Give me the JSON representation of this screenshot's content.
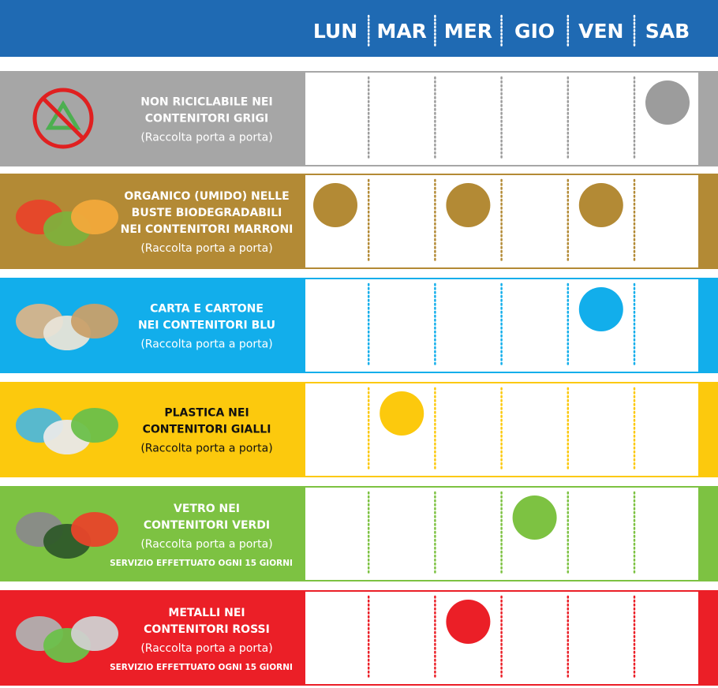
{
  "header": {
    "days": [
      "LUN",
      "MAR",
      "MER",
      "GIO",
      "VEN",
      "SAB"
    ],
    "color": "#1f6ab3"
  },
  "rows": [
    {
      "title": [
        "NON RICICLABILE NEI",
        "CONTENITORI GRIGI"
      ],
      "subtitle": "(Raccolta porta a porta)",
      "collection_days": [
        5
      ],
      "color": "#a6a6a6",
      "dot_color": "#9c9c9c",
      "text_color": "#ffffff"
    },
    {
      "title": [
        "ORGANICO (UMIDO) NELLE",
        "BUSTE BIODEGRADABILI",
        "NEI CONTENITORI MARRONI"
      ],
      "subtitle": "(Raccolta porta a porta)",
      "collection_days": [
        0,
        2,
        4
      ],
      "color": "#b38a35",
      "dot_color": "#b38a35",
      "text_color": "#ffffff"
    },
    {
      "title": [
        "CARTA E CARTONE",
        "NEI CONTENITORI BLU"
      ],
      "subtitle": "(Raccolta porta a porta)",
      "collection_days": [
        4
      ],
      "color": "#12aeeb",
      "dot_color": "#12aeeb",
      "text_color": "#ffffff"
    },
    {
      "title": [
        "PLASTICA NEI",
        "CONTENITORI GIALLI"
      ],
      "subtitle": "(Raccolta porta a porta)",
      "collection_days": [
        1
      ],
      "color": "#fcc90d",
      "dot_color": "#fcc90d",
      "text_color": "#111111"
    },
    {
      "title": [
        "VETRO NEI",
        "CONTENITORI VERDI"
      ],
      "subtitle": "(Raccolta porta a porta)",
      "note": "SERVIZIO EFFETTUATO OGNI 15 GIORNI",
      "collection_days": [
        3
      ],
      "color": "#7dc242",
      "dot_color": "#7dc242",
      "text_color": "#ffffff"
    },
    {
      "title": [
        "METALLI NEI",
        "CONTENITORI ROSSI"
      ],
      "subtitle": "(Raccolta porta a porta)",
      "note": "SERVIZIO EFFETTUATO OGNI 15 GIORNI",
      "collection_days": [
        2
      ],
      "color": "#eb1f27",
      "dot_color": "#eb1f27",
      "text_color": "#ffffff"
    }
  ]
}
